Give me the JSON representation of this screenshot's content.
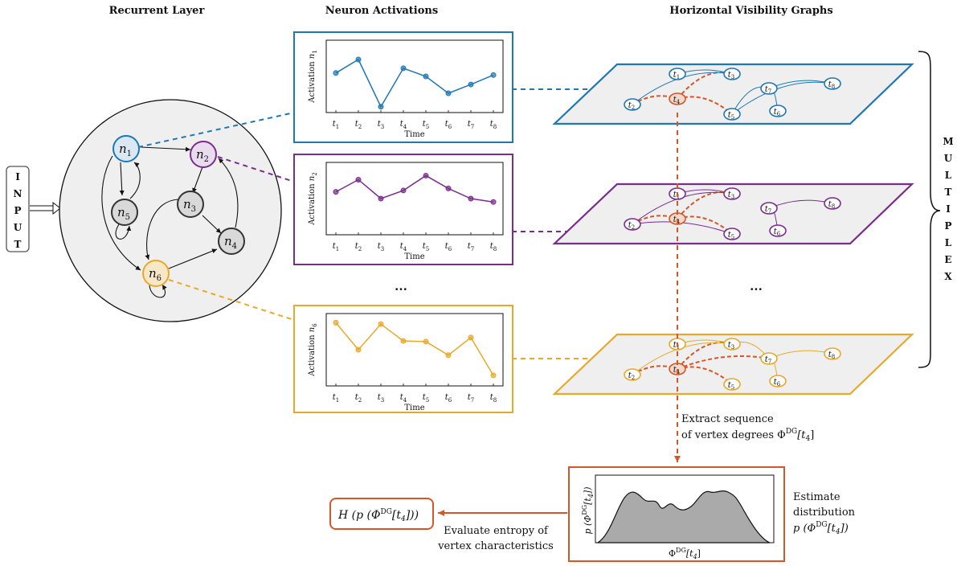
{
  "headers": {
    "recurrent": "Recurrent Layer",
    "activations": "Neuron Activations",
    "hvg": "Horizontal Visibility Graphs"
  },
  "input_letters": [
    "I",
    "N",
    "P",
    "U",
    "T"
  ],
  "multiplex_letters": [
    "M",
    "U",
    "L",
    "T",
    "I",
    "P",
    "L",
    "E",
    "X"
  ],
  "neurons": [
    {
      "id": "n1",
      "sub": "1",
      "color": "#1f77b4",
      "fill": "#dbe8f3"
    },
    {
      "id": "n2",
      "sub": "2",
      "color": "#7b2d8e",
      "fill": "#e9dcef"
    },
    {
      "id": "n3",
      "sub": "3",
      "color": "#333333",
      "fill": "#d9d9d9"
    },
    {
      "id": "n4",
      "sub": "4",
      "color": "#333333",
      "fill": "#d9d9d9"
    },
    {
      "id": "n5",
      "sub": "5",
      "color": "#333333",
      "fill": "#d9d9d9"
    },
    {
      "id": "n6",
      "sub": "6",
      "color": "#e8a92a",
      "fill": "#f6e7c6"
    }
  ],
  "colors": {
    "blue": "#1f77b4",
    "purple": "#7b2d8e",
    "yellow": "#e8a92a",
    "orange": "#d4572a"
  },
  "chart_data": [
    {
      "type": "line",
      "neuron_sub": "1",
      "ylabel": "Activation n",
      "color": "#1f77b4",
      "x": [
        "t1",
        "t2",
        "t3",
        "t4",
        "t5",
        "t6",
        "t7",
        "t8"
      ],
      "values": [
        0.55,
        0.75,
        0.05,
        0.62,
        0.5,
        0.25,
        0.38,
        0.52
      ],
      "ylim": [
        0,
        1
      ],
      "xlabel": "Time"
    },
    {
      "type": "line",
      "neuron_sub": "2",
      "ylabel": "Activation n",
      "color": "#7b2d8e",
      "x": [
        "t1",
        "t2",
        "t3",
        "t4",
        "t5",
        "t6",
        "t7",
        "t8"
      ],
      "values": [
        0.6,
        0.78,
        0.5,
        0.62,
        0.84,
        0.65,
        0.5,
        0.45
      ],
      "ylim": [
        0,
        1
      ],
      "xlabel": "Time"
    },
    {
      "type": "line",
      "neuron_sub": "6",
      "ylabel": "Activation n",
      "color": "#e8a92a",
      "x": [
        "t1",
        "t2",
        "t3",
        "t4",
        "t5",
        "t6",
        "t7",
        "t8"
      ],
      "values": [
        0.9,
        0.5,
        0.88,
        0.63,
        0.62,
        0.42,
        0.68,
        0.12
      ],
      "ylim": [
        0,
        1
      ],
      "xlabel": "Time"
    }
  ],
  "ellipsis": "...",
  "hvg_node_labels": [
    "t1",
    "t2",
    "t3",
    "t4",
    "t5",
    "t6",
    "t7",
    "t8"
  ],
  "extract_text": [
    "Extract sequence",
    "of vertex degrees Φ",
    "DG",
    "[t",
    "4",
    "]"
  ],
  "dist_ylabel": "p (Φ^DG[t4])",
  "dist_xlabel": "Φ^DG[t4]",
  "estimate_text": [
    "Estimate",
    "distribution"
  ],
  "entropy_text": [
    "Evaluate entropy of",
    "vertex characteristics"
  ]
}
